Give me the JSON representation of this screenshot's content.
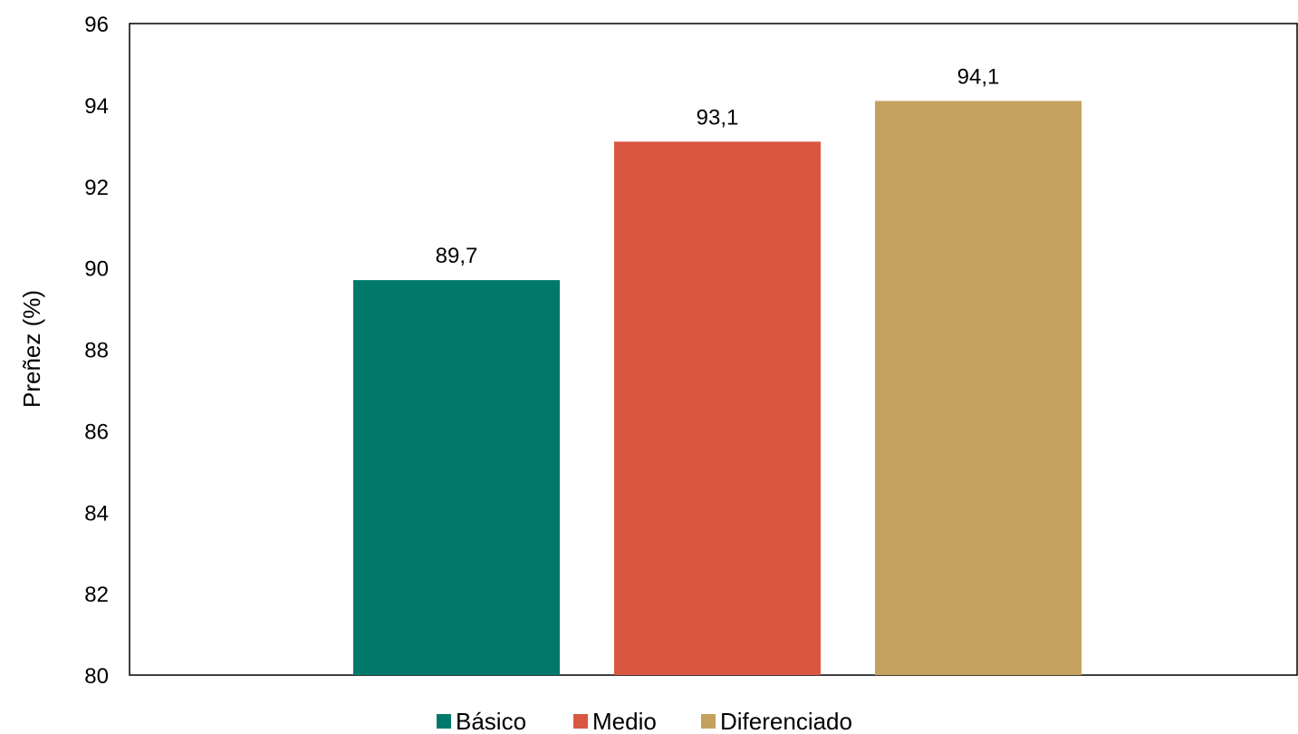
{
  "chart_data": {
    "type": "bar",
    "title": "",
    "xlabel": "",
    "ylabel": "Preñez (%)",
    "ylim": [
      80,
      96
    ],
    "yticks": [
      80,
      82,
      84,
      86,
      88,
      90,
      92,
      94,
      96
    ],
    "ytick_labels": [
      "80",
      "82",
      "84",
      "86",
      "88",
      "90",
      "92",
      "94",
      "96"
    ],
    "grid": false,
    "legend_position": "bottom",
    "series": [
      {
        "name": "Básico",
        "value": 89.7,
        "label": "89,7",
        "color": "#00796B"
      },
      {
        "name": "Medio",
        "value": 93.1,
        "label": "93,1",
        "color": "#D95741"
      },
      {
        "name": "Diferenciado",
        "value": 94.1,
        "label": "94,1",
        "color": "#C4A25E"
      }
    ]
  }
}
